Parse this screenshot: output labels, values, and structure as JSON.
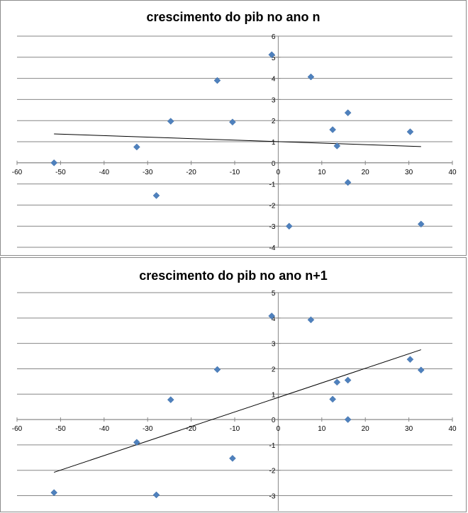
{
  "charts": [
    {
      "title": "crescimento do pib no ano n",
      "chart_data": {
        "type": "scatter",
        "title": "crescimento do pib no ano n",
        "xlabel": "",
        "ylabel": "",
        "xlim": [
          -60,
          40
        ],
        "ylim": [
          -4,
          6
        ],
        "x_ticks": [
          "-60",
          "-50",
          "-40",
          "-30",
          "-20",
          "-10",
          "0",
          "10",
          "20",
          "30",
          "40"
        ],
        "y_ticks": [
          "6",
          "5",
          "4",
          "3",
          "2",
          "1",
          "0",
          "-1",
          "-2",
          "-3",
          "-4"
        ],
        "points": [
          {
            "x": -51.5,
            "y": 0.0
          },
          {
            "x": -32.5,
            "y": 0.75
          },
          {
            "x": -28.0,
            "y": -1.55
          },
          {
            "x": -24.7,
            "y": 1.97
          },
          {
            "x": -14.0,
            "y": 3.9
          },
          {
            "x": -10.5,
            "y": 1.93
          },
          {
            "x": -1.5,
            "y": 5.12
          },
          {
            "x": 2.5,
            "y": -3.0
          },
          {
            "x": 7.5,
            "y": 4.07
          },
          {
            "x": 12.5,
            "y": 1.57
          },
          {
            "x": 13.5,
            "y": 0.8
          },
          {
            "x": 16.0,
            "y": 2.37
          },
          {
            "x": 16.0,
            "y": -0.93
          },
          {
            "x": 30.3,
            "y": 1.47
          },
          {
            "x": 32.8,
            "y": -2.9
          }
        ],
        "trendline": {
          "x": [
            -51.5,
            32.8
          ],
          "y": [
            1.37,
            0.77
          ]
        },
        "grid": "horizontal",
        "marker_color": "#4f81bd",
        "line_color": "#000000"
      }
    },
    {
      "title": "crescimento do pib no ano n+1",
      "chart_data": {
        "type": "scatter",
        "title": "crescimento do pib no ano n+1",
        "xlabel": "",
        "ylabel": "",
        "xlim": [
          -60,
          40
        ],
        "ylim": [
          -3.6,
          5
        ],
        "x_ticks": [
          "-60",
          "-50",
          "-40",
          "-30",
          "-20",
          "-10",
          "0",
          "10",
          "20",
          "30",
          "40"
        ],
        "y_ticks": [
          "5",
          "4",
          "3",
          "2",
          "1",
          "0",
          "-1",
          "-2",
          "-3"
        ],
        "points": [
          {
            "x": -51.5,
            "y": -2.88
          },
          {
            "x": -32.5,
            "y": -0.9
          },
          {
            "x": -28.0,
            "y": -2.97
          },
          {
            "x": -24.7,
            "y": 0.78
          },
          {
            "x": -14.0,
            "y": 1.97
          },
          {
            "x": -10.5,
            "y": -1.53
          },
          {
            "x": -1.5,
            "y": 4.08
          },
          {
            "x": 7.5,
            "y": 3.93
          },
          {
            "x": 12.5,
            "y": 0.8
          },
          {
            "x": 13.5,
            "y": 1.47
          },
          {
            "x": 16.0,
            "y": 1.55
          },
          {
            "x": 16.0,
            "y": 0.0
          },
          {
            "x": 30.3,
            "y": 2.37
          },
          {
            "x": 32.8,
            "y": 1.95
          }
        ],
        "trendline": {
          "x": [
            -51.5,
            32.8
          ],
          "y": [
            -2.08,
            2.75
          ]
        },
        "grid": "horizontal",
        "marker_color": "#4f81bd",
        "line_color": "#000000"
      }
    }
  ]
}
